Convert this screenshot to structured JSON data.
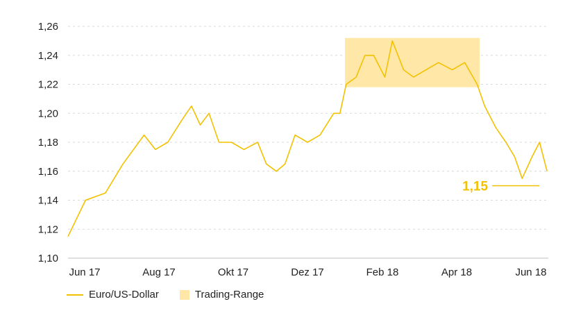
{
  "chart_data": {
    "type": "line",
    "title": "",
    "xlabel": "",
    "ylabel": "",
    "ylim": [
      1.1,
      1.26
    ],
    "y_ticks": [
      "1,10",
      "1,12",
      "1,14",
      "1,16",
      "1,18",
      "1,20",
      "1,22",
      "1,24",
      "1,26"
    ],
    "x_ticks": [
      "Jun 17",
      "Aug 17",
      "Okt 17",
      "Dez 17",
      "Feb 18",
      "Apr 18",
      "Jun 18"
    ],
    "grid": "horizontal dashed",
    "legend_position": "bottom-left",
    "series": [
      {
        "name": "Euro/US-Dollar",
        "color": "#f2c200",
        "x": [
          "2017-06-01",
          "2017-06-15",
          "2017-07-01",
          "2017-07-15",
          "2017-08-01",
          "2017-08-10",
          "2017-08-20",
          "2017-08-31",
          "2017-09-08",
          "2017-09-15",
          "2017-09-22",
          "2017-09-30",
          "2017-10-10",
          "2017-10-20",
          "2017-10-31",
          "2017-11-07",
          "2017-11-15",
          "2017-11-22",
          "2017-11-30",
          "2017-12-10",
          "2017-12-20",
          "2017-12-31",
          "2018-01-05",
          "2018-01-10",
          "2018-01-18",
          "2018-01-25",
          "2018-02-01",
          "2018-02-10",
          "2018-02-16",
          "2018-02-25",
          "2018-03-05",
          "2018-03-15",
          "2018-03-25",
          "2018-04-05",
          "2018-04-15",
          "2018-04-25",
          "2018-05-01",
          "2018-05-10",
          "2018-05-18",
          "2018-05-25",
          "2018-05-31",
          "2018-06-08",
          "2018-06-14",
          "2018-06-20"
        ],
        "values": [
          1.115,
          1.14,
          1.145,
          1.165,
          1.185,
          1.175,
          1.18,
          1.195,
          1.205,
          1.192,
          1.2,
          1.18,
          1.18,
          1.175,
          1.18,
          1.165,
          1.16,
          1.165,
          1.185,
          1.18,
          1.185,
          1.2,
          1.2,
          1.22,
          1.225,
          1.24,
          1.24,
          1.225,
          1.25,
          1.23,
          1.225,
          1.23,
          1.235,
          1.23,
          1.235,
          1.22,
          1.205,
          1.19,
          1.18,
          1.17,
          1.155,
          1.17,
          1.18,
          1.16
        ]
      }
    ],
    "shaded_range": {
      "name": "Trading-Range",
      "color": "#ffe7a8",
      "x_start": "2018-01-09",
      "x_end": "2018-04-27",
      "y_start": 1.218,
      "y_end": 1.252
    },
    "annotation": {
      "label": "1,15",
      "x": "2018-05-27",
      "y": 1.15,
      "color": "#f2c200"
    }
  }
}
